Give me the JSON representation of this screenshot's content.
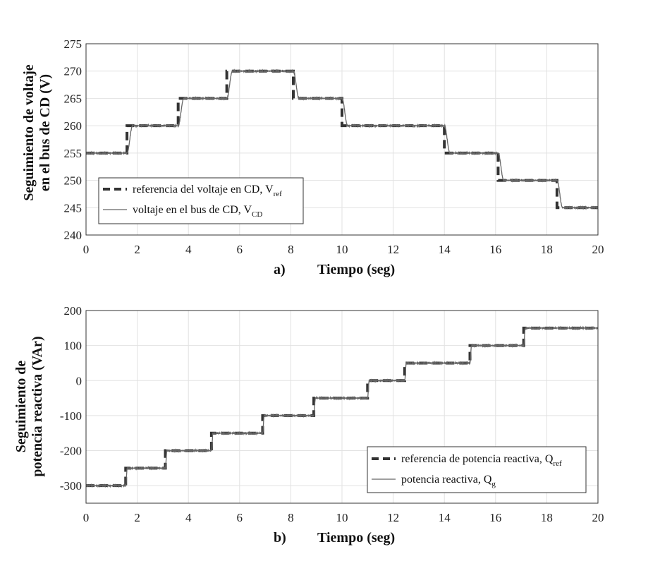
{
  "chart_data": [
    {
      "type": "line",
      "panel_label": "a)",
      "xlabel": "Tiempo (seg)",
      "ylabel_line1": "Seguimiento de voltaje",
      "ylabel_line2": "en el bus de CD (V)",
      "xlim": [
        0,
        20
      ],
      "ylim": [
        240,
        275
      ],
      "xticks": [
        0,
        2,
        4,
        6,
        8,
        10,
        12,
        14,
        16,
        18,
        20
      ],
      "yticks": [
        240,
        245,
        250,
        255,
        260,
        265,
        270,
        275
      ],
      "grid": true,
      "legend_position": "bottom-left",
      "series": [
        {
          "name": "referencia del voltaje en CD, V",
          "name_sub": "ref",
          "style": "dashed",
          "steps": [
            [
              0,
              255
            ],
            [
              1.6,
              260
            ],
            [
              3.6,
              265
            ],
            [
              5.5,
              270
            ],
            [
              8.1,
              265
            ],
            [
              10.0,
              260
            ],
            [
              14.0,
              255
            ],
            [
              16.1,
              250
            ],
            [
              18.4,
              245
            ]
          ]
        },
        {
          "name": "voltaje en el bus de CD, V",
          "name_sub": "CD",
          "style": "solid",
          "lag": 0.22,
          "steps": [
            [
              0,
              255
            ],
            [
              1.6,
              260
            ],
            [
              3.6,
              265
            ],
            [
              5.5,
              270
            ],
            [
              8.1,
              265
            ],
            [
              10.0,
              260
            ],
            [
              14.0,
              255
            ],
            [
              16.1,
              250
            ],
            [
              18.4,
              245
            ]
          ]
        }
      ]
    },
    {
      "type": "line",
      "panel_label": "b)",
      "xlabel": "Tiempo (seg)",
      "ylabel_line1": "Seguimiento de",
      "ylabel_line2": "potencia reactiva (VAr)",
      "xlim": [
        0,
        20
      ],
      "ylim": [
        -350,
        200
      ],
      "xticks": [
        0,
        2,
        4,
        6,
        8,
        10,
        12,
        14,
        16,
        18,
        20
      ],
      "yticks": [
        -300,
        -200,
        -100,
        0,
        100,
        200
      ],
      "ytick_labels": [
        "-300",
        "-200",
        "-100",
        "0",
        "100",
        "200"
      ],
      "grid": true,
      "legend_position": "bottom-right",
      "series": [
        {
          "name": "referencia de potencia reactiva, Q",
          "name_sub": "ref",
          "style": "dashed",
          "steps": [
            [
              0,
              -300
            ],
            [
              1.55,
              -250
            ],
            [
              3.1,
              -200
            ],
            [
              4.9,
              -150
            ],
            [
              6.9,
              -100
            ],
            [
              8.9,
              -50
            ],
            [
              11.0,
              0
            ],
            [
              12.45,
              50
            ],
            [
              15.0,
              100
            ],
            [
              17.1,
              150
            ]
          ]
        },
        {
          "name": "potencia reactiva, Q",
          "name_sub": "g",
          "style": "solid",
          "lag": 0.06,
          "steps": [
            [
              0,
              -300
            ],
            [
              1.55,
              -250
            ],
            [
              3.1,
              -200
            ],
            [
              4.9,
              -150
            ],
            [
              6.9,
              -100
            ],
            [
              8.9,
              -50
            ],
            [
              11.0,
              0
            ],
            [
              12.45,
              50
            ],
            [
              15.0,
              100
            ],
            [
              17.1,
              150
            ]
          ]
        }
      ]
    }
  ]
}
